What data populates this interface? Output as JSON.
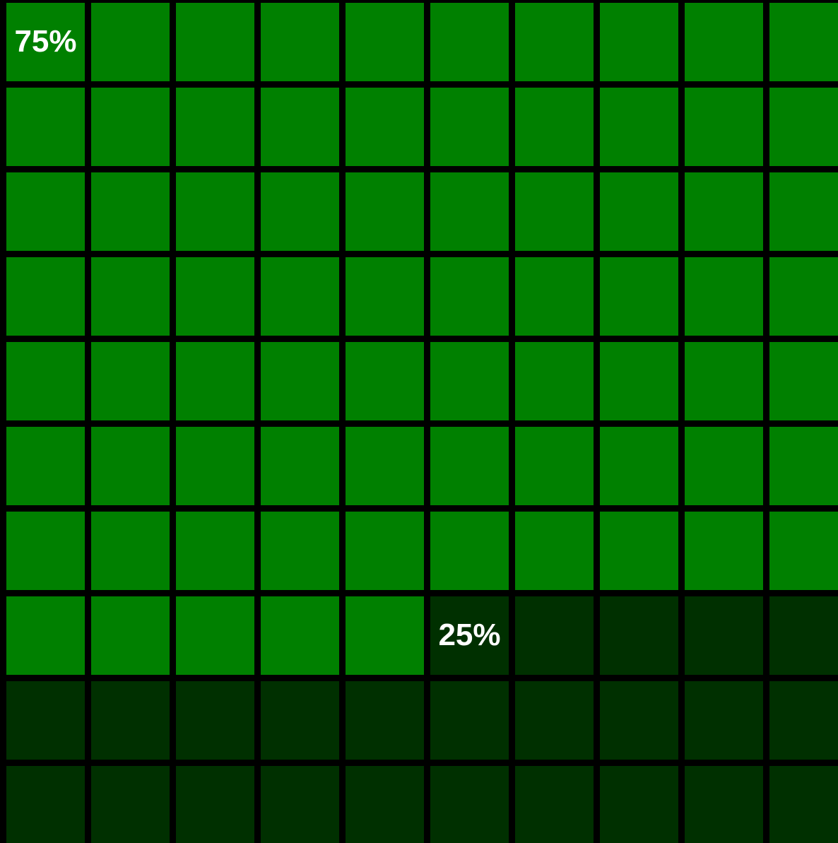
{
  "chart_data": {
    "type": "waffle",
    "values": [
      75,
      25
    ],
    "value_labels": [
      "75%",
      "25%"
    ],
    "colors": [
      "#008000",
      "#003000"
    ]
  }
}
